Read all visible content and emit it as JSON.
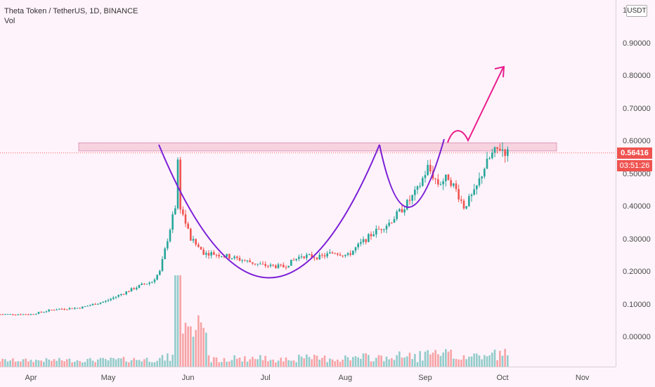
{
  "legend": {
    "symbol": "Theta Token / TetherUS, 1D, BINANCE",
    "volume_label": "Vol"
  },
  "price_axis": {
    "labels": [
      "0.90000",
      "0.80000",
      "0.70000",
      "0.60000",
      "0.50000",
      "0.40000",
      "0.30000",
      "0.20000",
      "0.10000",
      "0.00000"
    ],
    "top_label": "1",
    "unit": "USDT",
    "current_price": "0.56416",
    "countdown": "03:51:26"
  },
  "time_axis": {
    "labels": [
      "Apr",
      "May",
      "Jun",
      "Jul",
      "Aug",
      "Sep",
      "Oct",
      "Nov"
    ]
  },
  "colors": {
    "up": "#26a69a",
    "down": "#ef5350",
    "cup": "#7b1fd6",
    "arrow": "#e91e8c",
    "zone": "#f1b6c8"
  },
  "chart_data": {
    "type": "candlestick",
    "title": "Theta Token / TetherUS, 1D, BINANCE",
    "xlabel": "",
    "ylabel": "",
    "ylim": [
      -0.05,
      1.0
    ],
    "y_ticks": [
      0.0,
      0.1,
      0.2,
      0.3,
      0.4,
      0.5,
      0.6,
      0.7,
      0.8,
      0.9
    ],
    "x_ticks": [
      "Apr",
      "May",
      "Jun",
      "Jul",
      "Aug",
      "Sep",
      "Oct",
      "Nov"
    ],
    "close_path": [
      [
        "2020-03-20",
        0.07
      ],
      [
        "2020-04-01",
        0.07
      ],
      [
        "2020-04-10",
        0.085
      ],
      [
        "2020-04-20",
        0.09
      ],
      [
        "2020-04-30",
        0.11
      ],
      [
        "2020-05-07",
        0.135
      ],
      [
        "2020-05-14",
        0.16
      ],
      [
        "2020-05-18",
        0.17
      ],
      [
        "2020-05-21",
        0.2
      ],
      [
        "2020-05-24",
        0.3
      ],
      [
        "2020-05-27",
        0.4
      ],
      [
        "2020-05-28",
        0.54
      ],
      [
        "2020-05-29",
        0.4
      ],
      [
        "2020-06-02",
        0.3
      ],
      [
        "2020-06-07",
        0.26
      ],
      [
        "2020-06-15",
        0.25
      ],
      [
        "2020-06-20",
        0.24
      ],
      [
        "2020-06-25",
        0.23
      ],
      [
        "2020-06-30",
        0.22
      ],
      [
        "2020-07-08",
        0.215
      ],
      [
        "2020-07-15",
        0.25
      ],
      [
        "2020-07-22",
        0.245
      ],
      [
        "2020-07-28",
        0.26
      ],
      [
        "2020-08-02",
        0.25
      ],
      [
        "2020-08-06",
        0.28
      ],
      [
        "2020-08-12",
        0.32
      ],
      [
        "2020-08-18",
        0.35
      ],
      [
        "2020-08-24",
        0.4
      ],
      [
        "2020-08-29",
        0.45
      ],
      [
        "2020-09-02",
        0.52
      ],
      [
        "2020-09-06",
        0.47
      ],
      [
        "2020-09-10",
        0.49
      ],
      [
        "2020-09-13",
        0.45
      ],
      [
        "2020-09-16",
        0.4
      ],
      [
        "2020-09-20",
        0.44
      ],
      [
        "2020-09-24",
        0.52
      ],
      [
        "2020-09-27",
        0.56
      ],
      [
        "2020-09-30",
        0.58
      ],
      [
        "2020-10-03",
        0.5642
      ]
    ],
    "resistance_zone": [
      0.57,
      0.595
    ],
    "last_price": 0.56416,
    "projection": "up-arrow"
  }
}
